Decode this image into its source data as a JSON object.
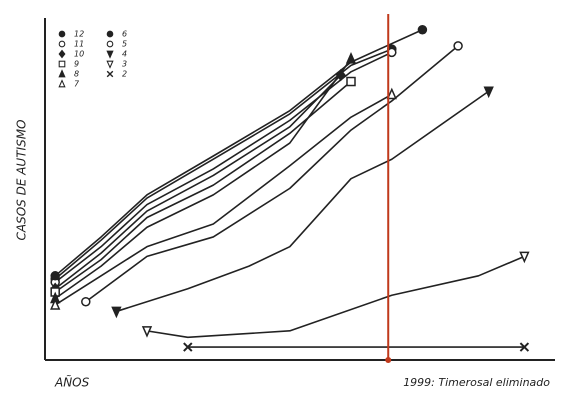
{
  "chart_data": {
    "type": "line",
    "ylabel": "CASOS DE AUTISMO",
    "xlabel": "AÑOS",
    "xlim": [
      0,
      100
    ],
    "ylim": [
      0,
      105
    ],
    "annotation": {
      "text": "1999: Timerosal eliminado",
      "x": 67.3,
      "color": "#c0391b"
    },
    "series": [
      {
        "name": "12",
        "marker": "circle",
        "color": "#222",
        "x": [
          2,
          11,
          20,
          33,
          48,
          60,
          68
        ],
        "values": [
          25,
          37,
          50,
          62,
          76,
          91,
          96
        ]
      },
      {
        "name": "11",
        "marker": "circle-open",
        "color": "#222",
        "x": [
          2,
          11,
          20,
          33,
          48,
          60,
          68
        ],
        "values": [
          24,
          35,
          48,
          59,
          74,
          89,
          95
        ]
      },
      {
        "name": "10",
        "marker": "diamond",
        "color": "#222",
        "x": [
          2,
          11,
          20,
          33,
          48,
          58
        ],
        "values": [
          22,
          33,
          46,
          57,
          72,
          88
        ]
      },
      {
        "name": "9",
        "marker": "square-open",
        "color": "#222",
        "x": [
          2,
          11,
          20,
          33,
          48,
          60
        ],
        "values": [
          21,
          31,
          44,
          54,
          70,
          86
        ]
      },
      {
        "name": "8",
        "marker": "triangle",
        "color": "#222",
        "x": [
          2,
          11,
          20,
          33,
          48,
          60
        ],
        "values": [
          19,
          29,
          41,
          51,
          67,
          93
        ]
      },
      {
        "name": "7",
        "marker": "triangle-open",
        "color": "#222",
        "x": [
          2,
          11,
          20,
          33,
          48,
          60,
          68
        ],
        "values": [
          17,
          26,
          35,
          42,
          60,
          75,
          82
        ]
      },
      {
        "name": "6",
        "marker": "circle",
        "color": "#222",
        "x": [
          2,
          11,
          20,
          33,
          48,
          60,
          74
        ],
        "values": [
          26,
          38,
          51,
          63,
          77,
          92,
          102
        ]
      },
      {
        "name": "5",
        "marker": "circle-open",
        "color": "#222",
        "x": [
          8,
          20,
          33,
          48,
          60,
          68,
          81
        ],
        "values": [
          18,
          32,
          38,
          53,
          71,
          80,
          97
        ]
      },
      {
        "name": "4",
        "marker": "triangle-down",
        "color": "#222",
        "x": [
          14,
          28,
          40,
          48,
          60,
          68,
          87
        ],
        "values": [
          15,
          22,
          29,
          35,
          56,
          62,
          83
        ]
      },
      {
        "name": "3",
        "marker": "triangle-down-open",
        "color": "#222",
        "x": [
          20,
          28,
          48,
          68,
          85,
          94
        ],
        "values": [
          9,
          7,
          9,
          20,
          26,
          32
        ]
      },
      {
        "name": "2",
        "marker": "x",
        "color": "#222",
        "x": [
          28,
          94
        ],
        "values": [
          4,
          4
        ]
      }
    ]
  }
}
